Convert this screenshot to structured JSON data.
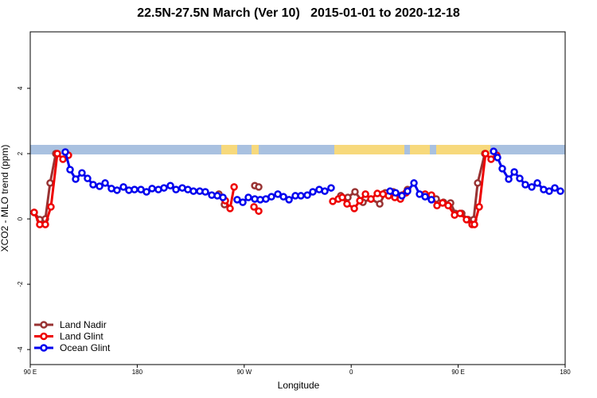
{
  "chart_data": {
    "type": "line",
    "title": "22.5N-27.5N March (Ver 10)   2015-01-01 to 2020-12-18",
    "x_label": "Longitude",
    "y_label": "XCO2 - MLO trend (ppm)",
    "xlim": [
      90,
      540
    ],
    "ylim": [
      -4.46,
      5.73
    ],
    "xticks": [
      {
        "value": 90,
        "label": "90 E"
      },
      180,
      {
        "value": 270,
        "label": "90 W"
      },
      {
        "value": 360,
        "label": "0"
      },
      {
        "value": 450,
        "label": "90 E"
      },
      {
        "value": 540,
        "label": "180"
      }
    ],
    "yticks": [
      -4,
      -2,
      0,
      2,
      4
    ],
    "legend": "bottom-left",
    "series": [
      {
        "name": "Land Nadir",
        "color": "#993333",
        "x": [
          93.3,
          98,
          102.7,
          106.7,
          111.5,
          null,
          248.7,
          253.4,
          null,
          278.9,
          282.2,
          null,
          351.2,
          357.2,
          363.2,
          369.9,
          376.6,
          384,
          388.7,
          395.4,
          402.7,
          407.4,
          null,
          431.5,
          437.6,
          443.6,
          447.6,
          453,
          458.3,
          463,
          466.4,
          472.4
        ],
        "values": [
          0.2,
          -0.02,
          0,
          1.1,
          2.0,
          null,
          0.76,
          0.44,
          null,
          1.02,
          0.98,
          null,
          0.71,
          0.66,
          0.83,
          0.51,
          0.61,
          0.46,
          0.8,
          0.83,
          0.73,
          0.9,
          null,
          0.61,
          0.51,
          0.49,
          0.17,
          0.17,
          -0.02,
          -0.02,
          1.1,
          2.0
        ]
      },
      {
        "name": "Land Glint",
        "color": "#ee0000",
        "x": [
          93.3,
          98,
          102.7,
          107.4,
          112.8,
          117.5,
          122.1,
          null,
          254.1,
          258.1,
          261.5,
          null,
          278.2,
          282.2,
          null,
          344.5,
          349.2,
          352.5,
          356.5,
          362.6,
          367.3,
          372,
          376.6,
          382,
          386.7,
          391.4,
          396.7,
          401.4,
          406.1,
          null,
          422.2,
          427.5,
          432.2,
          436.9,
          441.6,
          447,
          451.6,
          457,
          461.7,
          463.7,
          467.7,
          473,
          477.7,
          482.4
        ],
        "values": [
          0.2,
          -0.17,
          -0.17,
          0.37,
          2.0,
          1.83,
          1.95,
          null,
          0.56,
          0.32,
          0.98,
          null,
          0.37,
          0.24,
          null,
          0.54,
          0.61,
          0.66,
          0.46,
          0.32,
          0.56,
          0.76,
          0.61,
          0.78,
          0.76,
          0.71,
          0.66,
          0.61,
          0.8,
          null,
          0.76,
          0.73,
          0.41,
          0.49,
          0.41,
          0.12,
          0.17,
          -0.02,
          -0.17,
          -0.17,
          0.37,
          2.0,
          1.83,
          1.95
        ]
      },
      {
        "name": "Ocean Glint",
        "color": "#0000ee",
        "x": [
          119.5,
          123.5,
          128.2,
          133.5,
          138.2,
          142.9,
          148.3,
          153,
          158.3,
          163,
          168.4,
          173,
          177.7,
          183.1,
          187.8,
          192.5,
          197.8,
          202.5,
          207.9,
          212.6,
          217.9,
          222.6,
          227.3,
          232.6,
          237.3,
          242.7,
          247.4,
          252.1,
          null,
          264.1,
          268.8,
          273.5,
          278.9,
          283.5,
          288.2,
          292.9,
          298.3,
          303,
          307.7,
          313,
          317.7,
          323.1,
          327.7,
          333.1,
          337.8,
          343.1,
          null,
          392.7,
          397.4,
          402.7,
          407.4,
          412.8,
          417.5,
          422.2,
          427.5,
          null,
          479.8,
          483.1,
          487.1,
          492.5,
          497.2,
          501.8,
          506.5,
          511.9,
          516.6,
          521.9,
          526.6,
          531.3,
          536
        ],
        "values": [
          2.05,
          1.51,
          1.22,
          1.41,
          1.24,
          1.05,
          1.0,
          1.1,
          0.93,
          0.88,
          0.98,
          0.88,
          0.9,
          0.9,
          0.83,
          0.93,
          0.9,
          0.95,
          1.02,
          0.9,
          0.95,
          0.9,
          0.85,
          0.85,
          0.83,
          0.73,
          0.71,
          0.66,
          null,
          0.59,
          0.51,
          0.66,
          0.61,
          0.59,
          0.61,
          0.68,
          0.76,
          0.68,
          0.59,
          0.71,
          0.71,
          0.73,
          0.83,
          0.9,
          0.85,
          0.95,
          null,
          0.85,
          0.8,
          0.71,
          0.85,
          1.1,
          0.76,
          0.68,
          0.59,
          null,
          2.07,
          1.88,
          1.54,
          1.22,
          1.44,
          1.24,
          1.05,
          0.98,
          1.1,
          0.9,
          0.85,
          0.95,
          0.85
        ]
      }
    ]
  }
}
